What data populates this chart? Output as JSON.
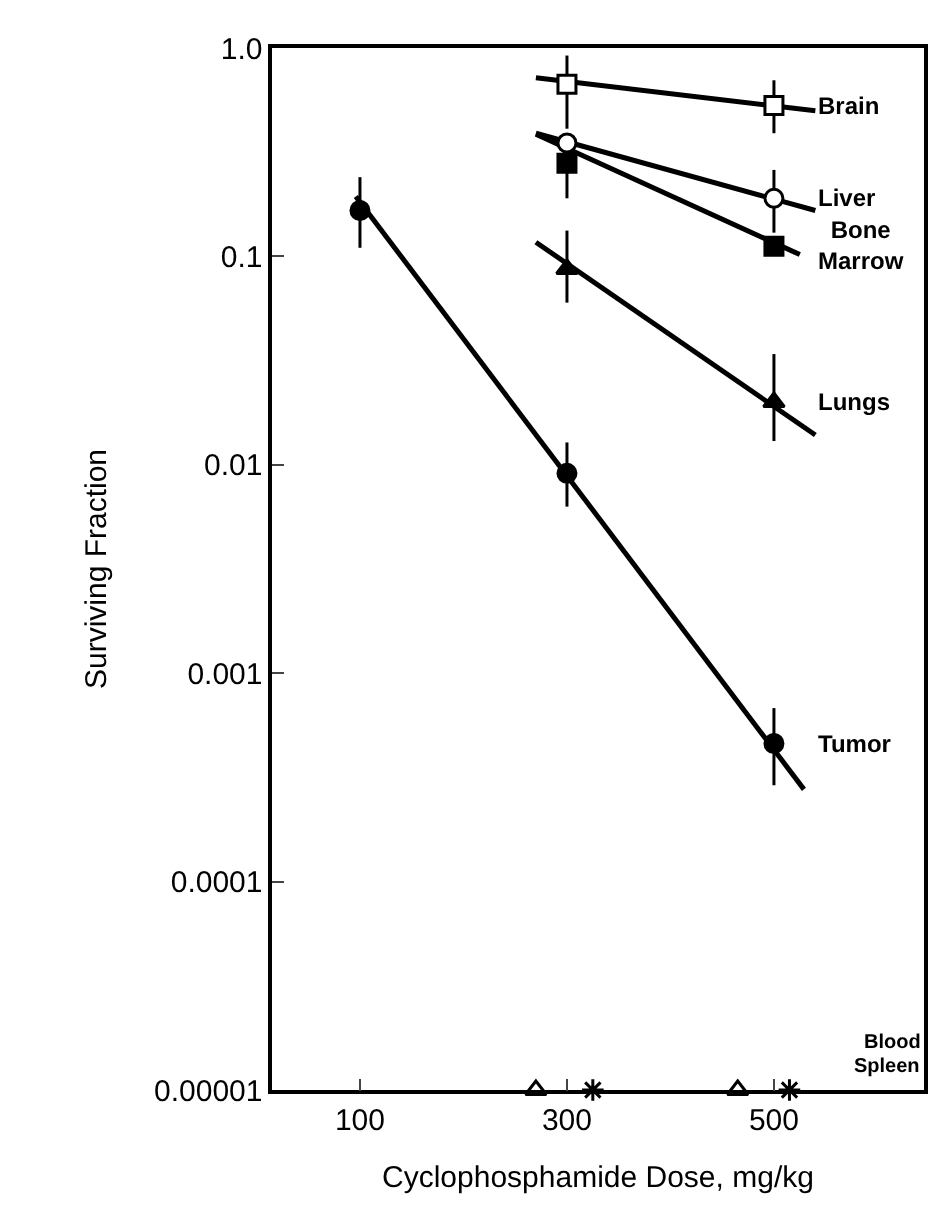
{
  "chart_data": {
    "type": "scatter",
    "xlabel": "Cyclophosphamide Dose, mg/kg",
    "ylabel": "Surviving Fraction",
    "log": "y",
    "xlim": [
      15,
      645
    ],
    "xticks": [
      100,
      300,
      500
    ],
    "ylim": [
      1e-05,
      1
    ],
    "yticks": [
      {
        "value": 1e-05,
        "label": "0.00001"
      },
      {
        "value": 0.0001,
        "label": "0.0001"
      },
      {
        "value": 0.001,
        "label": "0.001"
      },
      {
        "value": 0.01,
        "label": "0.01"
      },
      {
        "value": 0.1,
        "label": "0.1"
      },
      {
        "value": 1,
        "label": "1.0"
      }
    ],
    "legend": false,
    "series": [
      {
        "name": "Brain",
        "marker": "square-open",
        "color": "#000000",
        "x": [
          300,
          500
        ],
        "values": [
          0.67,
          0.53
        ],
        "errors": [
          [
            0.41,
            0.92
          ],
          [
            0.39,
            0.7
          ]
        ]
      },
      {
        "type": "line",
        "color": "#000000",
        "x": [
          270,
          540
        ],
        "values": [
          0.72,
          0.5
        ]
      },
      {
        "name": "Liver",
        "marker": "circle-open",
        "color": "#000000",
        "x": [
          300,
          500
        ],
        "values": [
          0.35,
          0.19
        ],
        "errors": [
          null,
          [
            0.13,
            0.26
          ]
        ]
      },
      {
        "type": "line",
        "color": "#000000",
        "x": [
          270,
          540
        ],
        "values": [
          0.39,
          0.166
        ]
      },
      {
        "name": "Bone Marrow",
        "marker": "square",
        "color": "#000000",
        "x": [
          300,
          500
        ],
        "values": [
          0.28,
          0.112
        ],
        "errors": [
          [
            0.19,
            0.3
          ],
          null
        ]
      },
      {
        "type": "line",
        "color": "#000000",
        "x": [
          270,
          525
        ],
        "values": [
          0.386,
          0.102
        ]
      },
      {
        "name": "Lungs",
        "marker": "triangle",
        "color": "#000000",
        "x": [
          300,
          500
        ],
        "values": [
          0.087,
          0.02
        ],
        "errors": [
          [
            0.06,
            0.133
          ],
          [
            0.013,
            0.034
          ]
        ]
      },
      {
        "type": "line",
        "color": "#000000",
        "x": [
          270,
          540
        ],
        "values": [
          0.117,
          0.0139
        ]
      },
      {
        "name": "Tumor",
        "marker": "circle",
        "color": "#000000",
        "x": [
          100,
          300,
          500
        ],
        "values": [
          0.166,
          0.0091,
          0.00046
        ],
        "errors": [
          [
            0.11,
            0.24
          ],
          [
            0.0063,
            0.0128
          ],
          [
            0.00029,
            0.00068
          ]
        ]
      },
      {
        "type": "line",
        "color": "#000000",
        "x": [
          96,
          529
        ],
        "values": [
          0.194,
          0.000277
        ]
      },
      {
        "name": "Blood",
        "marker": "triangle-up-open",
        "color": "#000000",
        "x": [
          270,
          465
        ],
        "values": [
          1e-05,
          1e-05
        ]
      },
      {
        "name": "Spleen",
        "marker": "cross",
        "color": "#000000",
        "x": [
          325,
          515
        ],
        "values": [
          1e-05,
          1e-05
        ]
      }
    ]
  }
}
